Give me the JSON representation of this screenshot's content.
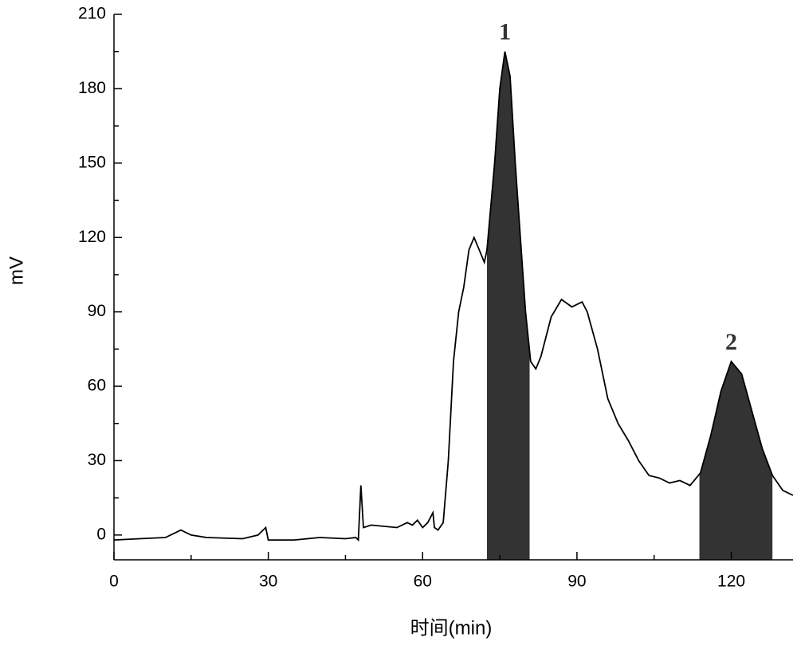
{
  "chart_data": {
    "type": "line",
    "xlabel": "时间(min)",
    "ylabel": "mV",
    "x": [
      0,
      5,
      10,
      12,
      13,
      15,
      18,
      25,
      28,
      29.5,
      30,
      35,
      40,
      45,
      47,
      47.5,
      48,
      48.5,
      50,
      55,
      57,
      58,
      59,
      60,
      61,
      62,
      62.3,
      63,
      64,
      65,
      66,
      67,
      68,
      69,
      70,
      71,
      72,
      72.5,
      74,
      75,
      76,
      77,
      78,
      79,
      80,
      81,
      82,
      83,
      85,
      87,
      89,
      91,
      92,
      94,
      96,
      98,
      100,
      102,
      104,
      106,
      108,
      110,
      112,
      114,
      116,
      118,
      120,
      122,
      124,
      126,
      128,
      130,
      132
    ],
    "values": [
      -2,
      -1.5,
      -1,
      1,
      2,
      0,
      -1,
      -1.5,
      0,
      3,
      -2,
      -2,
      -1,
      -1.5,
      -1,
      -2,
      20,
      3,
      4,
      3,
      5,
      4,
      6,
      3,
      5,
      9,
      3,
      2,
      5,
      30,
      70,
      90,
      100,
      115,
      120,
      115,
      110,
      115,
      150,
      180,
      195,
      185,
      150,
      120,
      90,
      70,
      67,
      72,
      88,
      95,
      92,
      94,
      90,
      75,
      55,
      45,
      38,
      30,
      24,
      23,
      21,
      22,
      20,
      25,
      40,
      58,
      70,
      65,
      50,
      35,
      24,
      18,
      16
    ],
    "color": "#000000",
    "regions": [
      {
        "label": "1",
        "x": [
          72.5,
          80.8
        ]
      },
      {
        "label": "2",
        "x": [
          113.8,
          128
        ]
      }
    ],
    "region_color": "#333333",
    "xlim": [
      0,
      132
    ],
    "ylim": [
      -10,
      210
    ],
    "xticks": [
      0,
      30,
      60,
      90,
      120
    ],
    "yticks": [
      0,
      30,
      60,
      90,
      120,
      150,
      180,
      210
    ],
    "xminorticks": [
      15,
      45,
      75,
      105
    ],
    "yminorticks": [
      15,
      45,
      75,
      105,
      135,
      165,
      195
    ]
  }
}
